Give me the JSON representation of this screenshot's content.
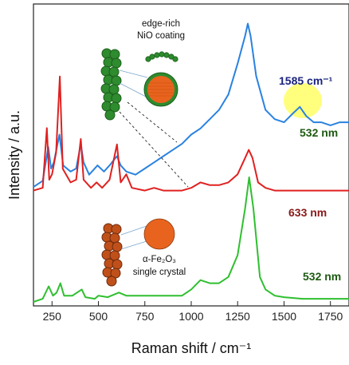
{
  "chart_data": {
    "type": "line",
    "xlabel": "Raman shift / cm⁻¹",
    "ylabel": "Intensity / a.u.",
    "xlim": [
      150,
      1850
    ],
    "x_ticks": [
      250,
      500,
      750,
      1000,
      1250,
      1500,
      1750
    ],
    "grid": false,
    "series": [
      {
        "name": "532 nm",
        "color": "#2a82e0",
        "label_color": "#1e5a12",
        "points": [
          [
            150,
            0.02
          ],
          [
            200,
            0.06
          ],
          [
            230,
            0.28
          ],
          [
            245,
            0.14
          ],
          [
            260,
            0.18
          ],
          [
            290,
            0.36
          ],
          [
            310,
            0.16
          ],
          [
            350,
            0.12
          ],
          [
            380,
            0.14
          ],
          [
            405,
            0.3
          ],
          [
            420,
            0.18
          ],
          [
            450,
            0.1
          ],
          [
            495,
            0.16
          ],
          [
            530,
            0.12
          ],
          [
            560,
            0.16
          ],
          [
            600,
            0.22
          ],
          [
            620,
            0.16
          ],
          [
            650,
            0.12
          ],
          [
            700,
            0.1
          ],
          [
            750,
            0.14
          ],
          [
            800,
            0.18
          ],
          [
            850,
            0.22
          ],
          [
            900,
            0.26
          ],
          [
            950,
            0.3
          ],
          [
            1000,
            0.36
          ],
          [
            1050,
            0.4
          ],
          [
            1100,
            0.46
          ],
          [
            1150,
            0.52
          ],
          [
            1200,
            0.62
          ],
          [
            1250,
            0.82
          ],
          [
            1290,
            1.0
          ],
          [
            1305,
            1.08
          ],
          [
            1320,
            1.0
          ],
          [
            1350,
            0.74
          ],
          [
            1400,
            0.52
          ],
          [
            1450,
            0.46
          ],
          [
            1500,
            0.44
          ],
          [
            1550,
            0.5
          ],
          [
            1585,
            0.54
          ],
          [
            1620,
            0.48
          ],
          [
            1660,
            0.44
          ],
          [
            1700,
            0.44
          ],
          [
            1750,
            0.42
          ],
          [
            1800,
            0.44
          ],
          [
            1850,
            0.44
          ]
        ]
      },
      {
        "name": "633 nm",
        "color": "#e02020",
        "label_color": "#8b1a1a",
        "points": [
          [
            150,
            0.02
          ],
          [
            200,
            0.04
          ],
          [
            222,
            0.48
          ],
          [
            235,
            0.1
          ],
          [
            250,
            0.14
          ],
          [
            272,
            0.3
          ],
          [
            292,
            0.86
          ],
          [
            308,
            0.18
          ],
          [
            350,
            0.08
          ],
          [
            380,
            0.1
          ],
          [
            405,
            0.4
          ],
          [
            420,
            0.1
          ],
          [
            460,
            0.04
          ],
          [
            490,
            0.08
          ],
          [
            520,
            0.04
          ],
          [
            560,
            0.1
          ],
          [
            600,
            0.36
          ],
          [
            620,
            0.08
          ],
          [
            650,
            0.14
          ],
          [
            680,
            0.04
          ],
          [
            750,
            0.02
          ],
          [
            800,
            0.04
          ],
          [
            850,
            0.02
          ],
          [
            900,
            0.02
          ],
          [
            950,
            0.02
          ],
          [
            1000,
            0.04
          ],
          [
            1050,
            0.08
          ],
          [
            1100,
            0.06
          ],
          [
            1150,
            0.06
          ],
          [
            1200,
            0.08
          ],
          [
            1250,
            0.14
          ],
          [
            1290,
            0.26
          ],
          [
            1310,
            0.32
          ],
          [
            1330,
            0.26
          ],
          [
            1360,
            0.08
          ],
          [
            1400,
            0.04
          ],
          [
            1450,
            0.02
          ],
          [
            1500,
            0.02
          ],
          [
            1600,
            0.02
          ],
          [
            1700,
            0.02
          ],
          [
            1850,
            0.02
          ]
        ]
      },
      {
        "name": "532 nm",
        "color": "#2fbf2f",
        "label_color": "#1e5a12",
        "points": [
          [
            150,
            0.0
          ],
          [
            200,
            0.02
          ],
          [
            232,
            0.1
          ],
          [
            255,
            0.04
          ],
          [
            275,
            0.06
          ],
          [
            295,
            0.12
          ],
          [
            315,
            0.04
          ],
          [
            360,
            0.04
          ],
          [
            410,
            0.08
          ],
          [
            430,
            0.03
          ],
          [
            480,
            0.02
          ],
          [
            500,
            0.04
          ],
          [
            550,
            0.03
          ],
          [
            610,
            0.06
          ],
          [
            650,
            0.04
          ],
          [
            700,
            0.04
          ],
          [
            750,
            0.04
          ],
          [
            800,
            0.04
          ],
          [
            850,
            0.04
          ],
          [
            900,
            0.04
          ],
          [
            950,
            0.04
          ],
          [
            1000,
            0.08
          ],
          [
            1050,
            0.14
          ],
          [
            1100,
            0.12
          ],
          [
            1150,
            0.12
          ],
          [
            1200,
            0.16
          ],
          [
            1250,
            0.3
          ],
          [
            1290,
            0.6
          ],
          [
            1312,
            0.8
          ],
          [
            1335,
            0.6
          ],
          [
            1370,
            0.16
          ],
          [
            1400,
            0.08
          ],
          [
            1450,
            0.04
          ],
          [
            1500,
            0.03
          ],
          [
            1600,
            0.02
          ],
          [
            1700,
            0.02
          ],
          [
            1850,
            0.02
          ]
        ]
      }
    ],
    "annotations": {
      "peak_label": "1585 cm⁻¹",
      "coating_line1": "edge-rich",
      "coating_line2": "NiO coating",
      "crystal_line1": "α-Fe₂O₃",
      "crystal_line2": "single crystal"
    }
  },
  "colors": {
    "nio_green": "#2e8b2e",
    "nio_dark": "#1b5e1b",
    "fe_orange": "#e8641e",
    "fe_dark": "#8b3a10",
    "highlight": "#ffff66"
  }
}
